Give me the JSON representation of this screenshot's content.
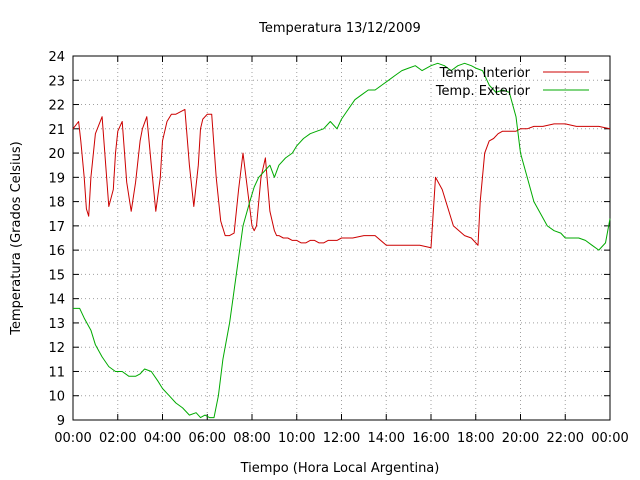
{
  "chart_data": {
    "type": "line",
    "title": "Temperatura 13/12/2009",
    "xlabel": "Tiempo (Hora Local Argentina)",
    "ylabel": "Temperatura (Grados Celsius)",
    "xlim": [
      0,
      24
    ],
    "ylim": [
      9,
      24
    ],
    "x_tick_labels": [
      "00:00",
      "02:00",
      "04:00",
      "06:00",
      "08:00",
      "10:00",
      "12:00",
      "14:00",
      "16:00",
      "18:00",
      "20:00",
      "22:00",
      "00:00"
    ],
    "y_tick_labels": [
      "9",
      "10",
      "11",
      "12",
      "13",
      "14",
      "15",
      "16",
      "17",
      "18",
      "19",
      "20",
      "21",
      "22",
      "23",
      "24"
    ],
    "grid": true,
    "legend_position": "top-right",
    "series": [
      {
        "name": "Temp. Interior",
        "color": "#cc0000",
        "x": [
          0,
          0.25,
          0.35,
          0.5,
          0.6,
          0.7,
          0.8,
          1.0,
          1.3,
          1.6,
          1.8,
          1.9,
          2.0,
          2.2,
          2.4,
          2.6,
          2.8,
          3.0,
          3.1,
          3.3,
          3.5,
          3.7,
          3.9,
          4.0,
          4.2,
          4.4,
          4.6,
          4.8,
          5.0,
          5.2,
          5.4,
          5.6,
          5.7,
          5.8,
          6.0,
          6.2,
          6.4,
          6.6,
          6.8,
          7.0,
          7.2,
          7.4,
          7.6,
          7.8,
          8.0,
          8.1,
          8.2,
          8.4,
          8.6,
          8.8,
          9.0,
          9.1,
          9.2,
          9.4,
          9.6,
          9.8,
          10.0,
          10.2,
          10.4,
          10.6,
          10.8,
          11.0,
          11.2,
          11.4,
          11.6,
          11.8,
          12.0,
          12.5,
          13.0,
          13.5,
          14.0,
          14.5,
          15.0,
          15.5,
          16.0,
          16.2,
          16.5,
          17.0,
          17.5,
          17.8,
          18.0,
          18.1,
          18.2,
          18.4,
          18.6,
          18.8,
          19.0,
          19.2,
          19.4,
          19.6,
          19.8,
          20.0,
          20.3,
          20.6,
          21.0,
          21.5,
          22.0,
          22.5,
          23.0,
          23.5,
          24.0
        ],
        "values": [
          21.0,
          21.3,
          20.5,
          19.0,
          17.7,
          17.4,
          19.0,
          20.8,
          21.5,
          17.8,
          18.5,
          20.0,
          20.9,
          21.3,
          18.8,
          17.6,
          18.8,
          20.5,
          21.0,
          21.5,
          19.5,
          17.6,
          19.0,
          20.5,
          21.3,
          21.6,
          21.6,
          21.7,
          21.8,
          19.5,
          17.8,
          19.5,
          21.0,
          21.4,
          21.6,
          21.6,
          19.0,
          17.2,
          16.6,
          16.6,
          16.7,
          18.5,
          20.0,
          18.5,
          17.0,
          16.8,
          17.0,
          19.0,
          19.8,
          17.6,
          16.8,
          16.6,
          16.6,
          16.5,
          16.5,
          16.4,
          16.4,
          16.3,
          16.3,
          16.4,
          16.4,
          16.3,
          16.3,
          16.4,
          16.4,
          16.4,
          16.5,
          16.5,
          16.6,
          16.6,
          16.2,
          16.2,
          16.2,
          16.2,
          16.1,
          19.0,
          18.5,
          17.0,
          16.6,
          16.5,
          16.3,
          16.2,
          18.0,
          20.0,
          20.5,
          20.6,
          20.8,
          20.9,
          20.9,
          20.9,
          20.9,
          21.0,
          21.0,
          21.1,
          21.1,
          21.2,
          21.2,
          21.1,
          21.1,
          21.1,
          21.0
        ],
        "x_data_note": "x values in hours since 00:00"
      },
      {
        "name": "Temp. Exterior",
        "color": "#00aa00",
        "x": [
          0,
          0.3,
          0.5,
          0.8,
          1.0,
          1.3,
          1.6,
          1.9,
          2.2,
          2.5,
          2.8,
          3.0,
          3.2,
          3.5,
          3.8,
          4.0,
          4.3,
          4.6,
          4.9,
          5.2,
          5.5,
          5.7,
          5.9,
          6.1,
          6.3,
          6.5,
          6.7,
          7.0,
          7.3,
          7.6,
          7.9,
          8.1,
          8.3,
          8.5,
          8.8,
          9.0,
          9.2,
          9.5,
          9.8,
          10.0,
          10.3,
          10.6,
          10.9,
          11.2,
          11.5,
          11.8,
          12.0,
          12.3,
          12.6,
          12.9,
          13.2,
          13.5,
          13.8,
          14.1,
          14.4,
          14.7,
          15.0,
          15.3,
          15.6,
          16.0,
          16.3,
          16.6,
          16.9,
          17.2,
          17.5,
          17.8,
          18.0,
          18.3,
          18.6,
          18.9,
          19.2,
          19.5,
          19.8,
          20.0,
          20.3,
          20.6,
          20.9,
          21.2,
          21.5,
          21.8,
          22.0,
          22.3,
          22.6,
          22.9,
          23.2,
          23.5,
          23.8,
          24.0
        ],
        "values": [
          13.6,
          13.6,
          13.2,
          12.7,
          12.1,
          11.6,
          11.2,
          11.0,
          11.0,
          10.8,
          10.8,
          10.9,
          11.1,
          11.0,
          10.6,
          10.3,
          10.0,
          9.7,
          9.5,
          9.2,
          9.3,
          9.1,
          9.2,
          9.1,
          9.1,
          10.0,
          11.5,
          13.0,
          15.0,
          17.0,
          18.0,
          18.6,
          19.0,
          19.2,
          19.5,
          19.0,
          19.5,
          19.8,
          20.0,
          20.3,
          20.6,
          20.8,
          20.9,
          21.0,
          21.3,
          21.0,
          21.4,
          21.8,
          22.2,
          22.4,
          22.6,
          22.6,
          22.8,
          23.0,
          23.2,
          23.4,
          23.5,
          23.6,
          23.4,
          23.6,
          23.7,
          23.6,
          23.4,
          23.6,
          23.7,
          23.6,
          23.5,
          23.4,
          22.8,
          22.5,
          22.6,
          22.5,
          21.5,
          20.0,
          19.0,
          18.0,
          17.5,
          17.0,
          16.8,
          16.7,
          16.5,
          16.5,
          16.5,
          16.4,
          16.2,
          16.0,
          16.3,
          17.3
        ]
      }
    ]
  }
}
